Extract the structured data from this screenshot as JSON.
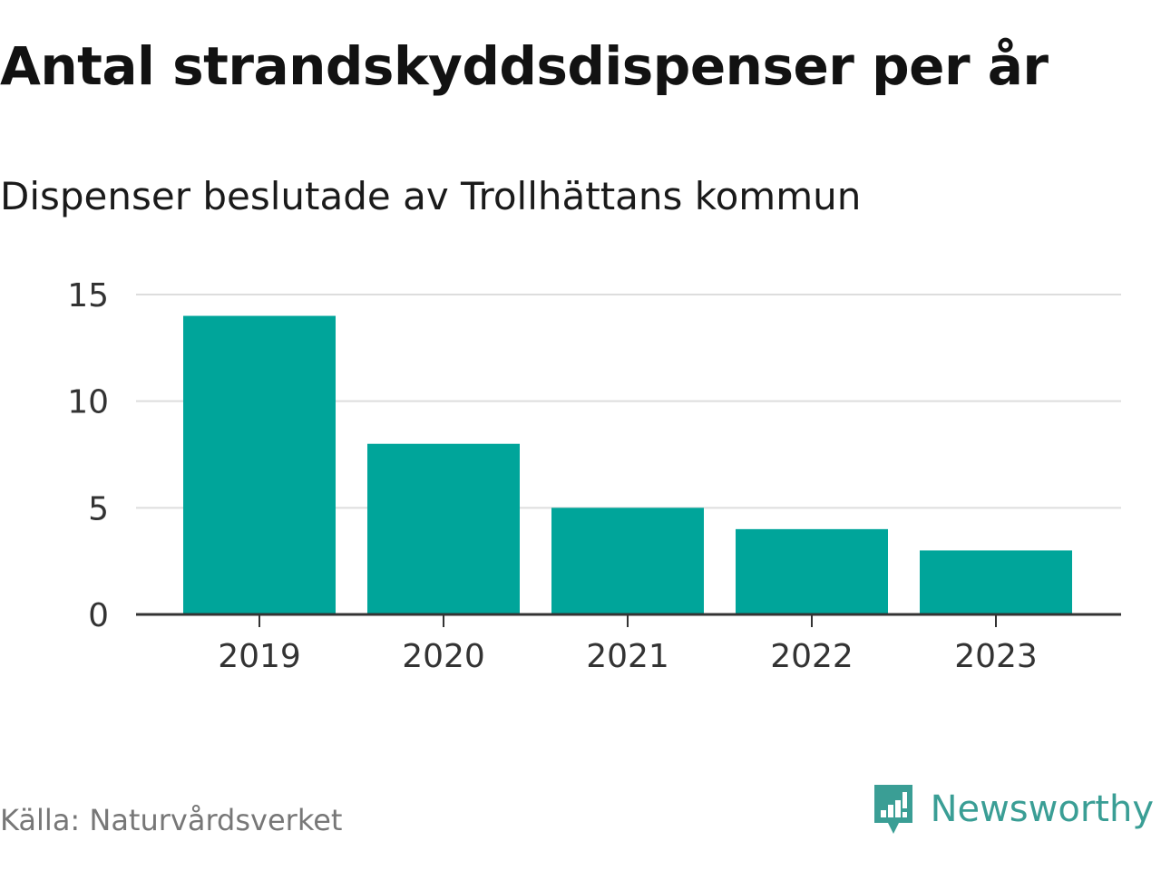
{
  "title": "Antal strandskyddsdispenser per år",
  "subtitle": "Dispenser beslutade av Trollhättans kommun",
  "source": "Källa: Naturvårdsverket",
  "brand": {
    "name": "Newsworthy",
    "icon": "newsworthy-logo-icon",
    "color": "#3a9e95"
  },
  "colors": {
    "bar": "#00a59a",
    "grid": "#dddddd",
    "axis": "#333333"
  },
  "chart_data": {
    "type": "bar",
    "title": "Antal strandskyddsdispenser per år",
    "subtitle": "Dispenser beslutade av Trollhättans kommun",
    "xlabel": "",
    "ylabel": "",
    "categories": [
      "2019",
      "2020",
      "2021",
      "2022",
      "2023"
    ],
    "values": [
      14,
      8,
      5,
      4,
      3
    ],
    "yticks": [
      0,
      5,
      10,
      15
    ],
    "ylim": [
      0,
      15
    ],
    "grid": true,
    "legend": "none"
  }
}
